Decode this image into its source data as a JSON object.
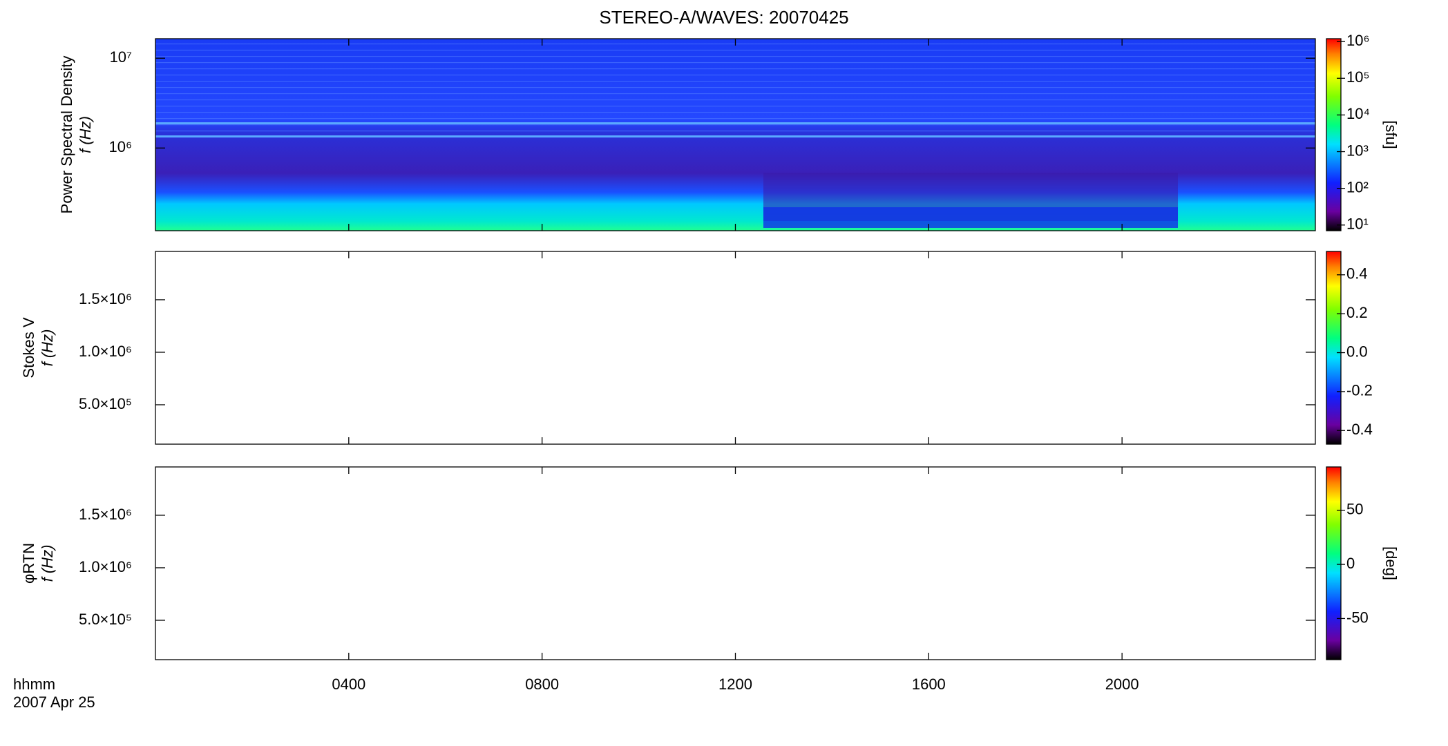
{
  "title": "STEREO-A/WAVES: 20070425",
  "chart_data": [
    {
      "type": "spectrogram",
      "ylabel": "Power Spectral Density",
      "ylabel2": "f (Hz)",
      "ylog": true,
      "xlim": [
        0,
        24
      ],
      "xticks": [
        4,
        8,
        12,
        16,
        20
      ],
      "ylim": [
        120000,
        16500000
      ],
      "yticks": [
        {
          "value": 1000000,
          "label": "10⁶"
        },
        {
          "value": 10000000,
          "label": "10⁷"
        }
      ],
      "colorbar": {
        "log": true,
        "lim": [
          7,
          1200000
        ],
        "label": "[sfu]",
        "ticks": [
          {
            "value": 10,
            "label": "10¹"
          },
          {
            "value": 100,
            "label": "10²"
          },
          {
            "value": 1000,
            "label": "10³"
          },
          {
            "value": 10000,
            "label": "10⁴"
          },
          {
            "value": 100000,
            "label": "10⁵"
          },
          {
            "value": 1000000,
            "label": "10⁶"
          }
        ]
      }
    },
    {
      "type": "spectrogram",
      "ylabel": "Stokes V",
      "ylabel2": "f (Hz)",
      "ylog": false,
      "xlim": [
        0,
        24
      ],
      "xticks": [
        4,
        8,
        12,
        16,
        20
      ],
      "ylim": [
        125000,
        1960000
      ],
      "yticks": [
        {
          "value": 500000,
          "label": "5.0×10⁵"
        },
        {
          "value": 1000000,
          "label": "1.0×10⁶"
        },
        {
          "value": 1500000,
          "label": "1.5×10⁶"
        }
      ],
      "colorbar": {
        "log": false,
        "lim": [
          -0.47,
          0.52
        ],
        "ticks": [
          {
            "value": -0.4,
            "label": "-0.4"
          },
          {
            "value": -0.2,
            "label": "-0.2"
          },
          {
            "value": 0,
            "label": "0.0"
          },
          {
            "value": 0.2,
            "label": "0.2"
          },
          {
            "value": 0.4,
            "label": "0.4"
          }
        ]
      }
    },
    {
      "type": "spectrogram",
      "ylabel": "φRTN",
      "ylabel2": "f (Hz)",
      "ylog": false,
      "xlim": [
        0,
        24
      ],
      "xticks": [
        {
          "value": 4,
          "label": "0400"
        },
        {
          "value": 8,
          "label": "0800"
        },
        {
          "value": 12,
          "label": "1200"
        },
        {
          "value": 16,
          "label": "1600"
        },
        {
          "value": 20,
          "label": "2000"
        }
      ],
      "xlabel": "hhmm",
      "date": "2007 Apr 25",
      "ylim": [
        125000,
        1960000
      ],
      "yticks": [
        {
          "value": 500000,
          "label": "5.0×10⁵"
        },
        {
          "value": 1000000,
          "label": "1.0×10⁶"
        },
        {
          "value": 1500000,
          "label": "1.5×10⁶"
        }
      ],
      "colorbar": {
        "log": false,
        "lim": [
          -88,
          90
        ],
        "label": "[deg]",
        "ticks": [
          -50,
          0,
          50
        ]
      }
    }
  ]
}
